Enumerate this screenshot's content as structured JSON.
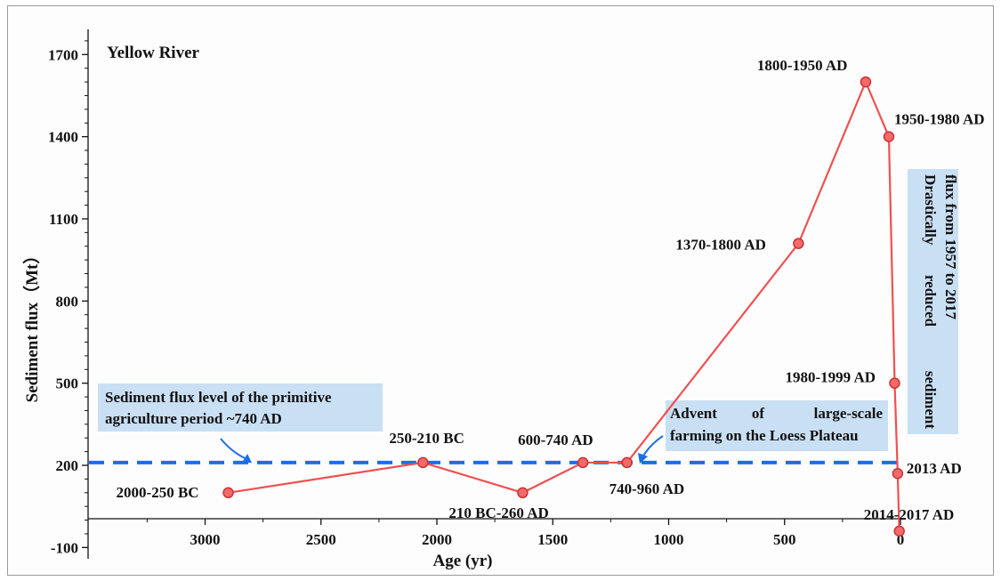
{
  "chart_data": {
    "type": "line",
    "title": "Yellow River",
    "xlabel": "Age (yr)",
    "ylabel": "Sediment flux（Mt）",
    "xlim": [
      3400,
      -25
    ],
    "ylim": [
      -100,
      1800
    ],
    "x_reversed": true,
    "xticks": [
      3000,
      2500,
      2000,
      1500,
      1000,
      500,
      0
    ],
    "yticks": [
      -100,
      200,
      500,
      800,
      1100,
      1400,
      1700
    ],
    "series_color": "#f05050",
    "point_fill": "#f26a6a",
    "x": [
      2900,
      2060,
      1630,
      1370,
      1180,
      440,
      150,
      50,
      25,
      12,
      5
    ],
    "y": [
      100,
      210,
      100,
      210,
      210,
      1010,
      1600,
      1400,
      500,
      170,
      -40
    ],
    "point_labels": [
      "2000-250 BC",
      "250-210 BC",
      "210 BC-260 AD",
      "600-740 AD",
      "740-960 AD",
      "1370-1800 AD",
      "1800-1950 AD",
      "1950-1980 AD",
      "1980-1999 AD",
      "2013 AD",
      "2014-2017 AD"
    ],
    "reference_line": {
      "y": 210,
      "color": "#1a6ee8",
      "style": "dashed"
    },
    "annotations": {
      "primitive_line1": "Sediment flux level of the primitive",
      "primitive_line2": "agriculture period ~740 AD",
      "farming_line1_words": [
        "Advent",
        "of",
        "large-scale"
      ],
      "farming_line2": "farming on the Loess Plateau",
      "reduced_line1_words": [
        "Drastically",
        "reduced",
        "sediment"
      ],
      "reduced_line2": "flux from 1957 to 2017",
      "box_color": "#c9dff3",
      "arrow_color": "#1a6ee8"
    },
    "grid": false,
    "legend": "none"
  }
}
